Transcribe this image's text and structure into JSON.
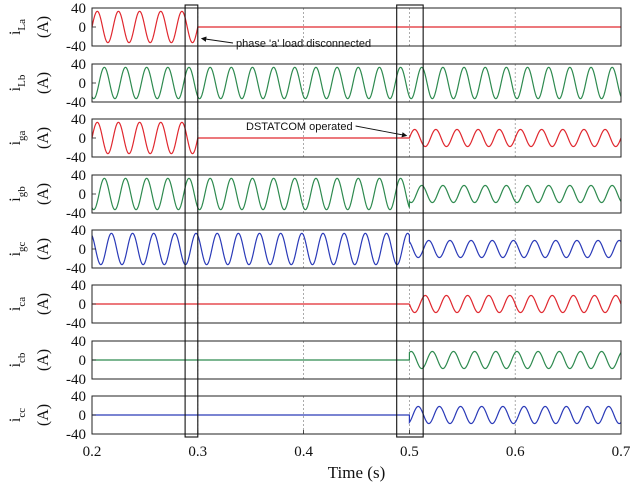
{
  "chart_data": {
    "type": "line",
    "xlabel": "Time (s)",
    "xlim": [
      0.2,
      0.7
    ],
    "xticks": [
      "0.2",
      "0.3",
      "0.4",
      "0.5",
      "0.6",
      "0.7"
    ],
    "frequency_hz": 50,
    "colors": {
      "red": "#e0282f",
      "green": "#2e8a4f",
      "blue": "#2a3ab8"
    },
    "panels": [
      {
        "id": "iLa",
        "ylabel_main": "i",
        "ylabel_sub": "La",
        "unit": "(A)",
        "ylim": [
          -40,
          40
        ],
        "yticks": [
          "40",
          "0",
          "-40"
        ],
        "color": "red",
        "segments": [
          {
            "t0": 0.2,
            "t1": 0.3,
            "amp": 33,
            "phase": 0
          },
          {
            "t0": 0.3,
            "t1": 0.7,
            "amp": 0,
            "phase": 0
          }
        ]
      },
      {
        "id": "iLb",
        "ylabel_main": "i",
        "ylabel_sub": "Lb",
        "unit": "(A)",
        "ylim": [
          -40,
          40
        ],
        "yticks": [
          "40",
          "0",
          "-40"
        ],
        "color": "green",
        "segments": [
          {
            "t0": 0.2,
            "t1": 0.7,
            "amp": 33,
            "phase": -2.094
          }
        ]
      },
      {
        "id": "iga",
        "ylabel_main": "i",
        "ylabel_sub": "ga",
        "unit": "(A)",
        "ylim": [
          -40,
          40
        ],
        "yticks": [
          "40",
          "0",
          "-40"
        ],
        "color": "red",
        "segments": [
          {
            "t0": 0.2,
            "t1": 0.3,
            "amp": 33,
            "phase": 0
          },
          {
            "t0": 0.3,
            "t1": 0.5,
            "amp": 0,
            "phase": 0
          },
          {
            "t0": 0.5,
            "t1": 0.7,
            "amp": 18,
            "phase": 0
          }
        ]
      },
      {
        "id": "igb",
        "ylabel_main": "i",
        "ylabel_sub": "gb",
        "unit": "(A)",
        "ylim": [
          -40,
          40
        ],
        "yticks": [
          "40",
          "0",
          "-40"
        ],
        "color": "green",
        "segments": [
          {
            "t0": 0.2,
            "t1": 0.5,
            "amp": 33,
            "phase": -2.094
          },
          {
            "t0": 0.5,
            "t1": 0.7,
            "amp": 18,
            "phase": -2.094
          }
        ]
      },
      {
        "id": "igc",
        "ylabel_main": "i",
        "ylabel_sub": "gc",
        "unit": "(A)",
        "ylim": [
          -40,
          40
        ],
        "yticks": [
          "40",
          "0",
          "-40"
        ],
        "color": "blue",
        "segments": [
          {
            "t0": 0.2,
            "t1": 0.5,
            "amp": 33,
            "phase": 2.094
          },
          {
            "t0": 0.5,
            "t1": 0.7,
            "amp": 18,
            "phase": 2.094
          }
        ]
      },
      {
        "id": "ica",
        "ylabel_main": "i",
        "ylabel_sub": "ca",
        "unit": "(A)",
        "ylim": [
          -40,
          40
        ],
        "yticks": [
          "40",
          "0",
          "-40"
        ],
        "color": "red",
        "segments": [
          {
            "t0": 0.2,
            "t1": 0.5,
            "amp": 0,
            "phase": 0
          },
          {
            "t0": 0.5,
            "t1": 0.7,
            "amp": 18,
            "phase": 3.14
          }
        ]
      },
      {
        "id": "icb",
        "ylabel_main": "i",
        "ylabel_sub": "cb",
        "unit": "(A)",
        "ylim": [
          -40,
          40
        ],
        "yticks": [
          "40",
          "0",
          "-40"
        ],
        "color": "green",
        "segments": [
          {
            "t0": 0.2,
            "t1": 0.5,
            "amp": 0,
            "phase": 0
          },
          {
            "t0": 0.5,
            "t1": 0.7,
            "amp": 18,
            "phase": 1.05
          }
        ]
      },
      {
        "id": "icc",
        "ylabel_main": "i",
        "ylabel_sub": "cc",
        "unit": "(A)",
        "ylim": [
          -40,
          40
        ],
        "yticks": [
          "40",
          "0",
          "-40"
        ],
        "color": "blue",
        "segments": [
          {
            "t0": 0.2,
            "t1": 0.5,
            "amp": 0,
            "phase": 0
          },
          {
            "t0": 0.5,
            "t1": 0.7,
            "amp": 18,
            "phase": -1.05
          }
        ]
      }
    ],
    "event_windows": [
      {
        "t0": 0.288,
        "t1": 0.3
      },
      {
        "t0": 0.488,
        "t1": 0.513
      }
    ],
    "annotations": [
      {
        "text": "phase 'a' load disconnected",
        "panel": 0,
        "point_t": 0.3,
        "point_y": -20
      },
      {
        "text": "DSTATCOM operated",
        "panel": 2,
        "point_t": 0.5,
        "point_y": 5
      }
    ],
    "grid": "vertical dashed at x ticks"
  }
}
